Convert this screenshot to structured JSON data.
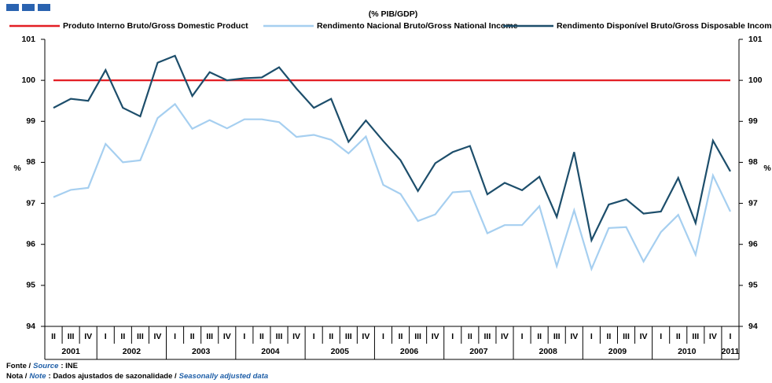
{
  "chart_data": {
    "type": "line",
    "subtitle": "(% PIB/GDP)",
    "y_label": "%",
    "categories": [
      "II",
      "III",
      "IV",
      "I",
      "II",
      "III",
      "IV",
      "I",
      "II",
      "III",
      "IV",
      "I",
      "II",
      "III",
      "IV",
      "I",
      "II",
      "III",
      "IV",
      "I",
      "II",
      "III",
      "IV",
      "I",
      "II",
      "III",
      "IV",
      "I",
      "II",
      "III",
      "IV",
      "I",
      "II",
      "III",
      "IV",
      "I",
      "II",
      "III",
      "IV",
      "I"
    ],
    "years": [
      "2001",
      "2002",
      "2003",
      "2004",
      "2005",
      "2006",
      "2007",
      "2008",
      "2009",
      "2010",
      "2011"
    ],
    "series": [
      {
        "name": "Produto Interno Bruto/Gross Domestic Product",
        "color": "#e31e24",
        "values": [
          100,
          100,
          100,
          100,
          100,
          100,
          100,
          100,
          100,
          100,
          100,
          100,
          100,
          100,
          100,
          100,
          100,
          100,
          100,
          100,
          100,
          100,
          100,
          100,
          100,
          100,
          100,
          100,
          100,
          100,
          100,
          100,
          100,
          100,
          100,
          100,
          100,
          100,
          100,
          100
        ]
      },
      {
        "name": "Rendimento Nacional Bruto/Gross National Income",
        "color": "#a6cff0",
        "values": [
          97.15,
          97.33,
          97.38,
          98.45,
          98.0,
          98.05,
          99.08,
          99.42,
          98.82,
          99.03,
          98.83,
          99.05,
          99.05,
          98.98,
          98.62,
          98.67,
          98.55,
          98.22,
          98.63,
          97.45,
          97.23,
          96.57,
          96.73,
          97.27,
          97.3,
          96.27,
          96.47,
          96.47,
          96.93,
          95.47,
          96.83,
          95.4,
          96.4,
          96.42,
          95.58,
          96.3,
          96.72,
          95.75,
          97.68,
          96.8
        ]
      },
      {
        "name": "Rendimento Disponível Bruto/Gross Disposable Income",
        "color": "#1d4e6b",
        "values": [
          99.33,
          99.55,
          99.5,
          100.25,
          99.33,
          99.12,
          100.43,
          100.6,
          99.62,
          100.2,
          100.0,
          100.05,
          100.07,
          100.32,
          99.8,
          99.33,
          99.55,
          98.5,
          99.02,
          98.52,
          98.05,
          97.3,
          97.98,
          98.25,
          98.4,
          97.22,
          97.5,
          97.32,
          97.65,
          96.67,
          98.25,
          96.1,
          96.97,
          97.1,
          96.75,
          96.8,
          97.62,
          96.52,
          98.53,
          97.78
        ]
      }
    ],
    "ylim": [
      94,
      101
    ],
    "yticks": [
      94,
      95,
      96,
      97,
      98,
      99,
      100,
      101
    ],
    "legend": "top",
    "notes": [
      [
        "Fonte /",
        "Source",
        ":  INE"
      ],
      [
        "Nota /",
        "Note",
        ": Dados ajustados de sazonalidade /",
        "Seasonally adjusted data"
      ]
    ]
  }
}
